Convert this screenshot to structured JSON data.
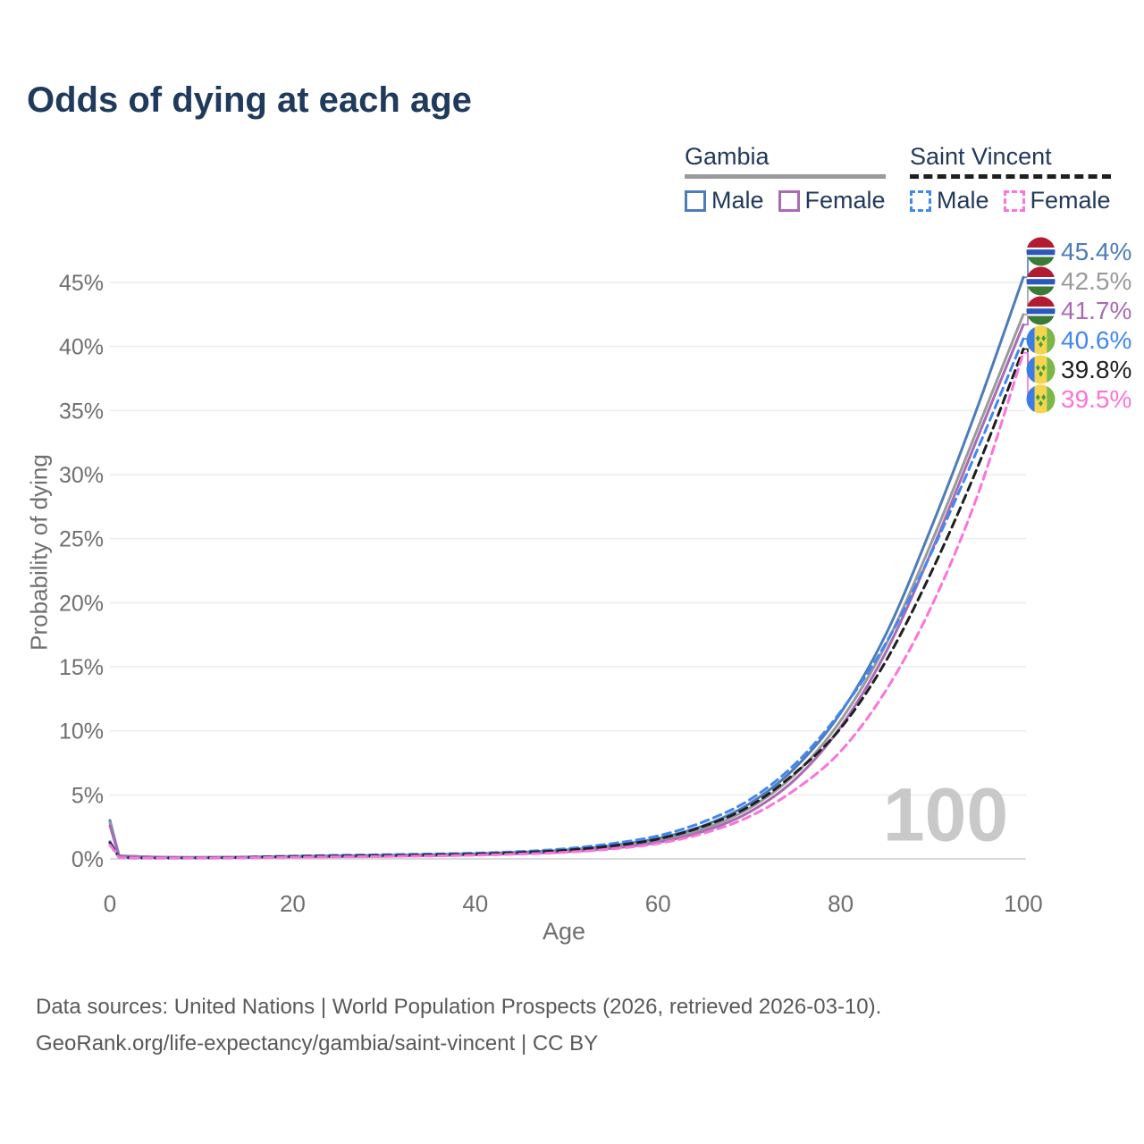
{
  "title": "Odds of dying at each age",
  "legend": {
    "groups": [
      {
        "label": "Gambia",
        "underline_style": "solid",
        "underline_color": "#9a9a9a",
        "items": [
          {
            "label": "Male",
            "color": "#4d7cb8",
            "dashed": false
          },
          {
            "label": "Female",
            "color": "#a86bb4",
            "dashed": false
          }
        ]
      },
      {
        "label": "Saint Vincent",
        "underline_style": "dashed",
        "underline_color": "#1f1f1f",
        "items": [
          {
            "label": "Male",
            "color": "#4187f2",
            "dashed": true
          },
          {
            "label": "Female",
            "color": "#fa74da",
            "dashed": true
          }
        ]
      }
    ]
  },
  "watermark": "100",
  "footer": {
    "line1": "Data sources: United Nations | World Population Prospects (2026, retrieved 2026-03-10).",
    "line2": "GeoRank.org/life-expectancy/gambia/saint-vincent | CC BY"
  },
  "colors": {
    "title_text": "#1f3a5c",
    "axis_text": "#6f6f6f",
    "gridline": "#ececec",
    "zero_line": "#d9d9d9",
    "watermark": "#c9c9c9"
  },
  "chart_data": {
    "type": "line",
    "title": "Odds of dying at each age",
    "xlabel": "Age",
    "ylabel": "Probability of dying",
    "xlim": [
      0,
      100
    ],
    "ylim": [
      0,
      47
    ],
    "grid": "horizontal-only",
    "legend_position": "top-right",
    "y_ticks": [
      {
        "value": 0,
        "label": "0%"
      },
      {
        "value": 5,
        "label": "5%"
      },
      {
        "value": 10,
        "label": "10%"
      },
      {
        "value": 15,
        "label": "15%"
      },
      {
        "value": 20,
        "label": "20%"
      },
      {
        "value": 25,
        "label": "25%"
      },
      {
        "value": 30,
        "label": "30%"
      },
      {
        "value": 35,
        "label": "35%"
      },
      {
        "value": 40,
        "label": "40%"
      },
      {
        "value": 45,
        "label": "45%"
      }
    ],
    "x_ticks": [
      {
        "value": 0,
        "label": "0"
      },
      {
        "value": 20,
        "label": "20"
      },
      {
        "value": 40,
        "label": "40"
      },
      {
        "value": 60,
        "label": "60"
      },
      {
        "value": 80,
        "label": "80"
      },
      {
        "value": 100,
        "label": "100"
      }
    ],
    "ages": [
      0,
      1,
      5,
      10,
      15,
      20,
      25,
      30,
      35,
      40,
      45,
      50,
      55,
      60,
      65,
      70,
      75,
      80,
      85,
      90,
      95,
      100
    ],
    "series": [
      {
        "name": "Gambia Male",
        "slug": "gambia-male",
        "country": "Gambia",
        "sex": "Male",
        "color": "#4d7cb8",
        "dash": null,
        "flag": "gambia",
        "end_label": "45.4%",
        "end_value": 45.4,
        "values": [
          3.0,
          0.25,
          0.15,
          0.12,
          0.15,
          0.2,
          0.24,
          0.28,
          0.33,
          0.4,
          0.52,
          0.7,
          1.05,
          1.6,
          2.6,
          4.3,
          7.1,
          11.4,
          17.6,
          26.0,
          35.3,
          45.4
        ]
      },
      {
        "name": "Gambia Both sexes",
        "slug": "gambia-both",
        "country": "Gambia",
        "sex": "Both",
        "color": "#9a9a9a",
        "dash": null,
        "flag": "gambia",
        "end_label": "42.5%",
        "end_value": 42.5,
        "values": [
          2.85,
          0.23,
          0.14,
          0.11,
          0.13,
          0.17,
          0.2,
          0.24,
          0.29,
          0.35,
          0.46,
          0.62,
          0.93,
          1.42,
          2.35,
          3.95,
          6.6,
          10.8,
          16.8,
          24.8,
          33.6,
          42.5
        ]
      },
      {
        "name": "Gambia Female",
        "slug": "gambia-female",
        "country": "Gambia",
        "sex": "Female",
        "color": "#a86bb4",
        "dash": null,
        "flag": "gambia",
        "end_label": "41.7%",
        "end_value": 41.7,
        "values": [
          2.6,
          0.2,
          0.13,
          0.1,
          0.12,
          0.15,
          0.17,
          0.2,
          0.25,
          0.31,
          0.41,
          0.55,
          0.83,
          1.28,
          2.15,
          3.65,
          6.2,
          10.3,
          16.2,
          24.1,
          32.9,
          41.7
        ]
      },
      {
        "name": "Saint Vincent Male",
        "slug": "saint-vincent-male",
        "country": "Saint Vincent",
        "sex": "Male",
        "color": "#4187f2",
        "dash": "9 6",
        "flag": "saint-vincent",
        "end_label": "40.6%",
        "end_value": 40.6,
        "values": [
          1.35,
          0.12,
          0.08,
          0.09,
          0.14,
          0.22,
          0.28,
          0.33,
          0.38,
          0.45,
          0.58,
          0.8,
          1.2,
          1.8,
          2.9,
          4.6,
          7.4,
          11.5,
          16.9,
          24.0,
          32.0,
          40.6
        ]
      },
      {
        "name": "Saint Vincent Both sexes",
        "slug": "saint-vincent-both",
        "country": "Saint Vincent",
        "sex": "Both",
        "color": "#1f1f1f",
        "dash": "9 6",
        "flag": "saint-vincent",
        "end_label": "39.8%",
        "end_value": 39.8,
        "values": [
          1.25,
          0.11,
          0.07,
          0.08,
          0.12,
          0.18,
          0.22,
          0.26,
          0.31,
          0.38,
          0.49,
          0.68,
          1.02,
          1.55,
          2.55,
          4.1,
          6.7,
          10.2,
          15.5,
          22.5,
          30.6,
          39.8
        ]
      },
      {
        "name": "Saint Vincent Female",
        "slug": "saint-vincent-female",
        "country": "Saint Vincent",
        "sex": "Female",
        "color": "#fa74da",
        "dash": "9 6",
        "flag": "saint-vincent",
        "end_label": "39.5%",
        "end_value": 39.5,
        "values": [
          1.1,
          0.1,
          0.06,
          0.07,
          0.09,
          0.13,
          0.16,
          0.19,
          0.23,
          0.29,
          0.38,
          0.52,
          0.78,
          1.2,
          2.0,
          3.3,
          5.4,
          8.4,
          13.2,
          19.8,
          28.4,
          39.5
        ]
      }
    ]
  }
}
